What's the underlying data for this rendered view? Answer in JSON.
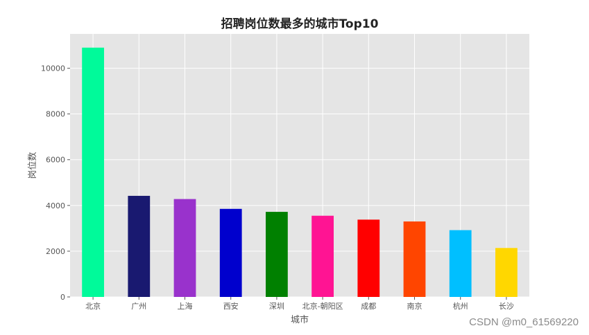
{
  "chart_data": {
    "type": "bar",
    "title": "招聘岗位数最多的城市Top10",
    "xlabel": "城市",
    "ylabel": "岗位数",
    "categories": [
      "北京",
      "广州",
      "上海",
      "西安",
      "深圳",
      "北京-朝阳区",
      "成都",
      "南京",
      "杭州",
      "长沙"
    ],
    "values": [
      10900,
      4420,
      4280,
      3850,
      3720,
      3550,
      3380,
      3300,
      2920,
      2140
    ],
    "colors": [
      "#00fa9a",
      "#191970",
      "#9932cc",
      "#0000cd",
      "#008000",
      "#ff1493",
      "#ff0000",
      "#ff4500",
      "#00bfff",
      "#ffd700"
    ],
    "ylim": [
      0,
      11500
    ],
    "yticks": [
      0,
      2000,
      4000,
      6000,
      8000,
      10000
    ],
    "grid": true,
    "background": "#e5e5e5",
    "grid_color": "#ffffff"
  },
  "watermark": "CSDN @m0_61569220"
}
